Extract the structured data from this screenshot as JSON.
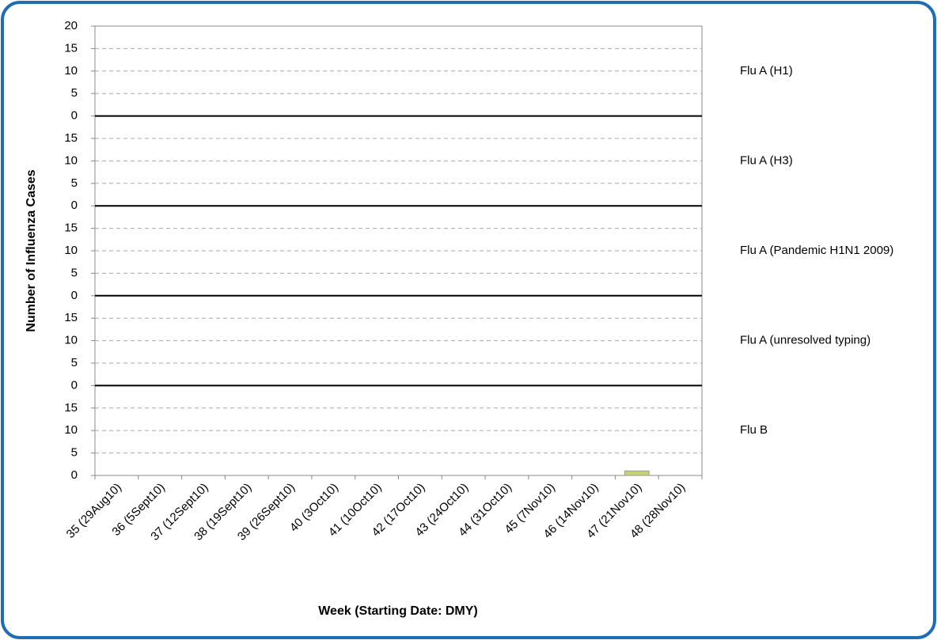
{
  "chart_data": {
    "type": "bar",
    "y_label": "Number of Influenza Cases",
    "x_label": "Week (Starting Date: DMY)",
    "categories": [
      "35 (29Aug10)",
      "36 (5Sept10)",
      "37 (12Sept10)",
      "38 (19Sept10)",
      "39 (26Sept10)",
      "40 (3Oct10)",
      "41 (10Oct10)",
      "42 (17Oct10)",
      "43 (24Oct10)",
      "44 (31Oct10)",
      "45 (7Nov10)",
      "46 (14Nov10)",
      "47 (21Nov10)",
      "48 (28Nov10)"
    ],
    "panels": [
      {
        "name": "Flu A (H1)",
        "values": [
          0,
          0,
          0,
          0,
          0,
          0,
          0,
          0,
          0,
          0,
          0,
          0,
          0,
          0
        ],
        "ylim": [
          0,
          20
        ],
        "yticks": [
          0,
          5,
          10,
          15,
          20
        ]
      },
      {
        "name": "Flu A (H3)",
        "values": [
          0,
          0,
          0,
          0,
          0,
          0,
          0,
          0,
          0,
          0,
          0,
          0,
          0,
          0
        ],
        "ylim": [
          0,
          20
        ],
        "yticks": [
          0,
          5,
          10,
          15
        ]
      },
      {
        "name": "Flu A (Pandemic H1N1 2009)",
        "values": [
          0,
          0,
          0,
          0,
          0,
          0,
          0,
          0,
          0,
          0,
          0,
          0,
          0,
          0
        ],
        "ylim": [
          0,
          20
        ],
        "yticks": [
          0,
          5,
          10,
          15
        ]
      },
      {
        "name": "Flu A (unresolved typing)",
        "values": [
          0,
          0,
          0,
          0,
          0,
          0,
          0,
          0,
          0,
          0,
          0,
          0,
          0,
          0
        ],
        "ylim": [
          0,
          20
        ],
        "yticks": [
          0,
          5,
          10,
          15
        ]
      },
      {
        "name": "Flu B",
        "color": "#c9d36b",
        "values": [
          0,
          0,
          0,
          0,
          0,
          0,
          0,
          0,
          0,
          0,
          0,
          0,
          1,
          0
        ],
        "ylim": [
          0,
          20
        ],
        "yticks": [
          0,
          5,
          10,
          15
        ]
      }
    ],
    "grid": true
  }
}
